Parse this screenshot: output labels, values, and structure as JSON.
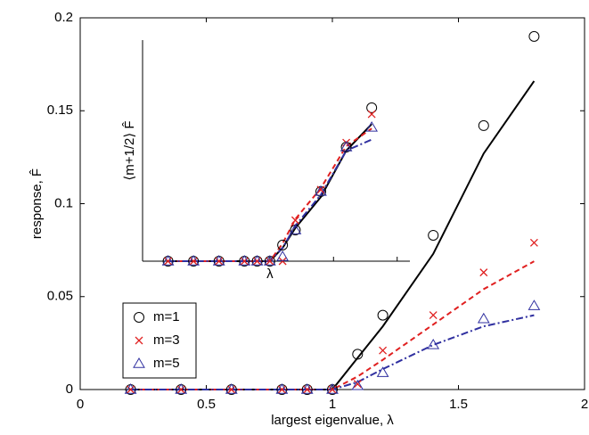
{
  "chart_data": [
    {
      "type": "line",
      "xlabel": "largest eigenvalue, λ",
      "ylabel": "response, F̂",
      "x": [
        0.2,
        0.4,
        0.6,
        0.8,
        0.9,
        1.0,
        1.1,
        1.2,
        1.4,
        1.6,
        1.8
      ],
      "xlim": [
        0,
        2
      ],
      "ylim": [
        0,
        0.2
      ],
      "xticks": [
        0,
        0.5,
        1,
        1.5,
        2
      ],
      "yticks": [
        0,
        0.05,
        0.1,
        0.15,
        0.2
      ],
      "legend": "lower left",
      "series": [
        {
          "name": "m=1",
          "color": "#000000",
          "marker": "circle",
          "values": [
            0,
            0,
            0,
            0,
            0,
            0,
            0.019,
            0.04,
            0.083,
            0.142,
            0.19
          ]
        },
        {
          "name": "m=3",
          "color": "#e02020",
          "marker": "cross",
          "values": [
            0,
            0,
            0,
            0,
            0,
            0,
            0.003,
            0.021,
            0.04,
            0.063,
            0.079
          ]
        },
        {
          "name": "m=5",
          "color": "#3030a0",
          "marker": "triangle",
          "values": [
            0,
            0,
            0,
            0,
            0,
            0,
            0.002,
            0.009,
            0.024,
            0.038,
            0.045
          ]
        }
      ],
      "lines": [
        {
          "color": "#000000",
          "dash": "solid",
          "values": [
            0,
            0,
            0,
            0,
            0,
            0,
            0.017,
            0.034,
            0.073,
            0.127,
            0.166
          ]
        },
        {
          "color": "#e02020",
          "dash": "dashed",
          "values": [
            0,
            0,
            0,
            0,
            0,
            0,
            0.007,
            0.016,
            0.035,
            0.054,
            0.069
          ]
        },
        {
          "color": "#3030a0",
          "dash": "dashdot",
          "values": [
            0,
            0,
            0,
            0,
            0,
            0,
            0.004,
            0.011,
            0.024,
            0.034,
            0.04
          ]
        }
      ]
    },
    {
      "type": "line",
      "xlabel": "λ",
      "ylabel": "⟨m+1/2⟩ F̂",
      "x": [
        0.2,
        0.4,
        0.6,
        0.8,
        0.9,
        1.0,
        1.1,
        1.2,
        1.4,
        1.6,
        1.8
      ],
      "xlim": [
        0,
        2.1
      ],
      "ylim": [
        0,
        1
      ],
      "xticks": [
        1,
        1.5,
        2
      ],
      "series": [
        {
          "color": "#000000",
          "marker": "circle",
          "values": [
            0,
            0,
            0,
            0,
            0,
            0,
            0.073,
            0.141,
            0.315,
            0.516,
            0.694
          ]
        },
        {
          "color": "#e02020",
          "marker": "cross",
          "values": [
            0,
            0,
            0,
            0,
            0,
            0,
            0,
            0.185,
            0.323,
            0.536,
            0.665
          ]
        },
        {
          "color": "#3030a0",
          "marker": "triangle",
          "values": [
            0,
            0,
            0,
            0,
            0,
            0,
            0.02,
            0.141,
            0.315,
            0.516,
            0.605
          ]
        }
      ],
      "lines": [
        {
          "color": "#000000",
          "dash": "solid",
          "values": [
            0,
            0,
            0,
            0,
            0,
            0,
            0.06,
            0.15,
            0.29,
            0.5,
            0.62
          ]
        },
        {
          "color": "#e02020",
          "dash": "dashed",
          "values": [
            0,
            0,
            0,
            0,
            0,
            0,
            0.08,
            0.19,
            0.33,
            0.52,
            0.6
          ]
        },
        {
          "color": "#3030a0",
          "dash": "dashdot",
          "values": [
            0,
            0,
            0,
            0,
            0,
            0,
            0.06,
            0.16,
            0.3,
            0.5,
            0.55
          ]
        }
      ]
    }
  ]
}
